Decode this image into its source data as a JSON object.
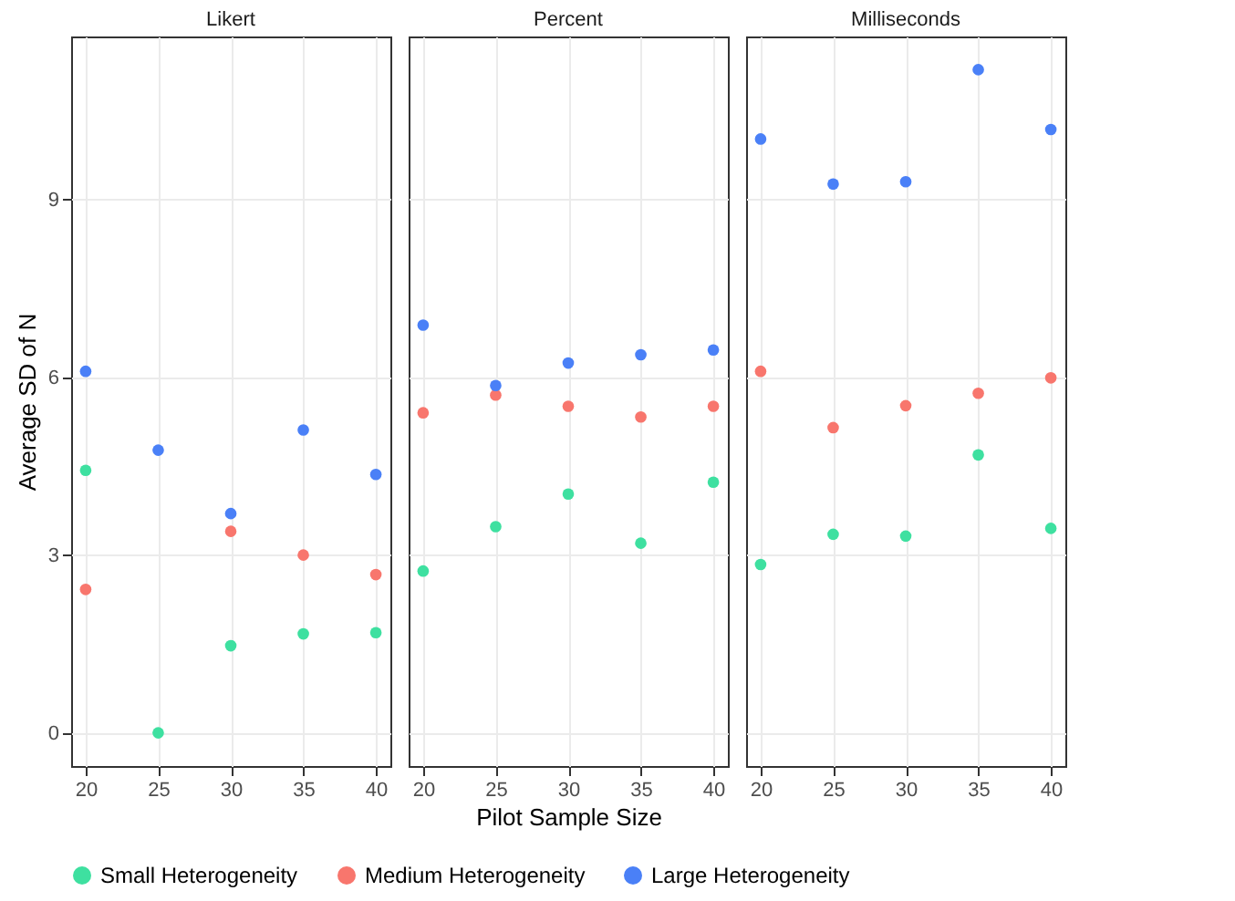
{
  "chart_data": [
    {
      "type": "scatter",
      "title": "Likert",
      "ylabel": "Average SD of N",
      "x": [
        20,
        25,
        30,
        35,
        40
      ],
      "xlim": [
        19,
        41
      ],
      "xticks": [
        20,
        25,
        30,
        35,
        40
      ],
      "ylim": [
        -0.56,
        11.75
      ],
      "yticks": [
        0,
        3,
        6,
        9
      ],
      "grid": true,
      "legend": "bottom",
      "marker": "circle",
      "series": [
        {
          "name": "Small Heterogeneity",
          "color": "#3ee0a0",
          "values": [
            4.43,
            0,
            1.47,
            1.67,
            1.69
          ]
        },
        {
          "name": "Medium Heterogeneity",
          "color": "#f8766d",
          "values": [
            2.42,
            null,
            3.4,
            3.0,
            2.67
          ]
        },
        {
          "name": "Large Heterogeneity",
          "color": "#4a80f7",
          "values": [
            6.1,
            4.77,
            3.7,
            5.11,
            4.36
          ]
        }
      ]
    },
    {
      "type": "scatter",
      "title": "Percent",
      "xlabel": "Pilot Sample Size",
      "x": [
        20,
        25,
        30,
        35,
        40
      ],
      "xlim": [
        19,
        41
      ],
      "xticks": [
        20,
        25,
        30,
        35,
        40
      ],
      "ylim": [
        -0.56,
        11.75
      ],
      "yticks": [
        0,
        3,
        6,
        9
      ],
      "tick_labels": "x",
      "grid": true,
      "legend": "bottom",
      "marker": "circle",
      "series": [
        {
          "name": "Small Heterogeneity",
          "color": "#3ee0a0",
          "values": [
            2.73,
            3.48,
            4.03,
            3.2,
            4.23
          ]
        },
        {
          "name": "Medium Heterogeneity",
          "color": "#f8766d",
          "values": [
            5.4,
            5.7,
            5.51,
            5.33,
            5.51
          ]
        },
        {
          "name": "Large Heterogeneity",
          "color": "#4a80f7",
          "values": [
            6.88,
            5.86,
            6.24,
            6.38,
            6.46
          ]
        }
      ]
    },
    {
      "type": "scatter",
      "title": "Milliseconds",
      "x": [
        20,
        25,
        30,
        35,
        40
      ],
      "xlim": [
        19,
        41
      ],
      "xticks": [
        20,
        25,
        30,
        35,
        40
      ],
      "ylim": [
        -0.56,
        11.75
      ],
      "yticks": [
        0,
        3,
        6,
        9
      ],
      "tick_labels": "x",
      "grid": true,
      "legend": "bottom",
      "marker": "circle",
      "series": [
        {
          "name": "Small Heterogeneity",
          "color": "#3ee0a0",
          "values": [
            2.84,
            3.35,
            3.32,
            4.69,
            3.45
          ]
        },
        {
          "name": "Medium Heterogeneity",
          "color": "#f8766d",
          "values": [
            6.1,
            5.15,
            5.52,
            5.73,
            5.99
          ]
        },
        {
          "name": "Large Heterogeneity",
          "color": "#4a80f7",
          "values": [
            10.02,
            9.26,
            9.3,
            11.19,
            10.18
          ]
        }
      ]
    }
  ]
}
